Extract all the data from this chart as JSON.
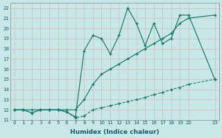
{
  "xlabel": "Humidex (Indice chaleur)",
  "bg_color": "#c8e8e8",
  "line_color": "#1a7a6a",
  "grid_color": "#b0d0d0",
  "xlim": [
    -0.5,
    23.5
  ],
  "ylim": [
    11,
    22.5
  ],
  "xticks": [
    0,
    1,
    2,
    3,
    4,
    5,
    6,
    7,
    8,
    9,
    10,
    11,
    12,
    13,
    14,
    15,
    16,
    17,
    18,
    19,
    20,
    23
  ],
  "yticks": [
    11,
    12,
    13,
    14,
    15,
    16,
    17,
    18,
    19,
    20,
    21,
    22
  ],
  "line1_x": [
    0,
    1,
    2,
    3,
    4,
    5,
    6,
    7,
    8,
    9,
    10,
    11,
    12,
    13,
    14,
    15,
    16,
    17,
    18,
    19,
    20,
    23
  ],
  "line1_y": [
    12,
    12,
    11.7,
    12,
    12,
    12,
    11.8,
    11.2,
    11.4,
    12.0,
    12.2,
    12.4,
    12.6,
    12.8,
    13.0,
    13.2,
    13.5,
    13.7,
    14.0,
    14.2,
    14.5,
    15.0
  ],
  "line2_x": [
    0,
    1,
    2,
    3,
    4,
    5,
    6,
    7,
    8,
    9,
    10,
    11,
    12,
    13,
    14,
    15,
    16,
    17,
    18,
    19,
    20,
    23
  ],
  "line2_y": [
    12,
    12,
    12,
    12,
    12,
    12,
    12,
    12,
    13.0,
    14.5,
    15.5,
    16.0,
    16.5,
    17.0,
    17.5,
    18.0,
    18.5,
    19.0,
    19.5,
    20.5,
    21.0,
    21.3
  ],
  "line3_x": [
    0,
    1,
    2,
    3,
    4,
    5,
    6,
    7,
    8,
    9,
    10,
    11,
    12,
    13,
    14,
    15,
    16,
    17,
    18,
    19,
    20,
    23
  ],
  "line3_y": [
    12,
    12,
    11.7,
    12.0,
    12.0,
    12.0,
    11.8,
    11.3,
    17.8,
    19.3,
    19.0,
    17.5,
    19.3,
    22.0,
    20.5,
    18.3,
    20.5,
    18.5,
    19.0,
    21.3,
    21.3,
    15.0
  ]
}
